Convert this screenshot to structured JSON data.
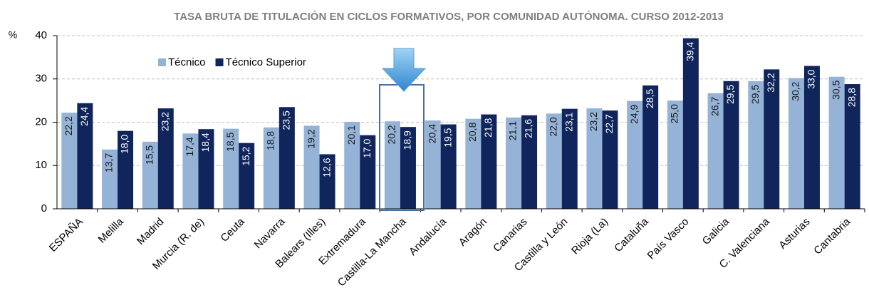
{
  "chart_data": {
    "type": "bar",
    "title": "TASA BRUTA DE TITULACIÓN EN CICLOS FORMATIVOS, POR COMUNIDAD AUTÓNOMA. CURSO 2012-2013",
    "y_label": "%",
    "categories": [
      "ESPAÑA",
      "Melilla",
      "Madrid",
      "Murcia (R. de)",
      "Ceuta",
      "Navarra",
      "Balears (Illes)",
      "Extremadura",
      "Castilla-La Mancha",
      "Andalucía",
      "Aragón",
      "Canarias",
      "Castilla y León",
      "Rioja (La)",
      "Cataluña",
      "País Vasco",
      "Galicia",
      "C. Valenciana",
      "Asturias",
      "Cantabria"
    ],
    "series": [
      {
        "name": "Técnico",
        "color": "#95b3d7",
        "values": [
          22.2,
          13.7,
          15.5,
          17.4,
          18.5,
          18.8,
          19.2,
          20.1,
          20.2,
          20.4,
          20.8,
          21.1,
          22.0,
          23.2,
          24.9,
          25.0,
          26.7,
          29.5,
          30.2,
          30.5
        ],
        "value_labels": [
          "22,2",
          "13,7",
          "15,5",
          "17,4",
          "18,5",
          "18,8",
          "19,2",
          "20,1",
          "20,2",
          "20,4",
          "20,8",
          "21,1",
          "22,0",
          "23,2",
          "24,9",
          "25,0",
          "26,7",
          "29,5",
          "30,2",
          "30,5"
        ]
      },
      {
        "name": "Técnico Superior",
        "color": "#10255c",
        "values": [
          24.4,
          18.0,
          23.2,
          18.4,
          15.2,
          23.5,
          12.6,
          17.0,
          18.9,
          19.5,
          21.8,
          21.6,
          23.1,
          22.7,
          28.5,
          39.4,
          29.5,
          32.2,
          33.0,
          28.8
        ],
        "value_labels": [
          "24,4",
          "18,0",
          "23,2",
          "18,4",
          "15,2",
          "23,5",
          "12,6",
          "17,0",
          "18,9",
          "19,5",
          "21,8",
          "21,6",
          "23,1",
          "22,7",
          "28,5",
          "39,4",
          "29,5",
          "32,2",
          "33,0",
          "28,8"
        ]
      }
    ],
    "ylim": [
      0,
      40
    ],
    "yticks": [
      0,
      10,
      20,
      30,
      40
    ],
    "grid": true,
    "legend": "top-left"
  }
}
